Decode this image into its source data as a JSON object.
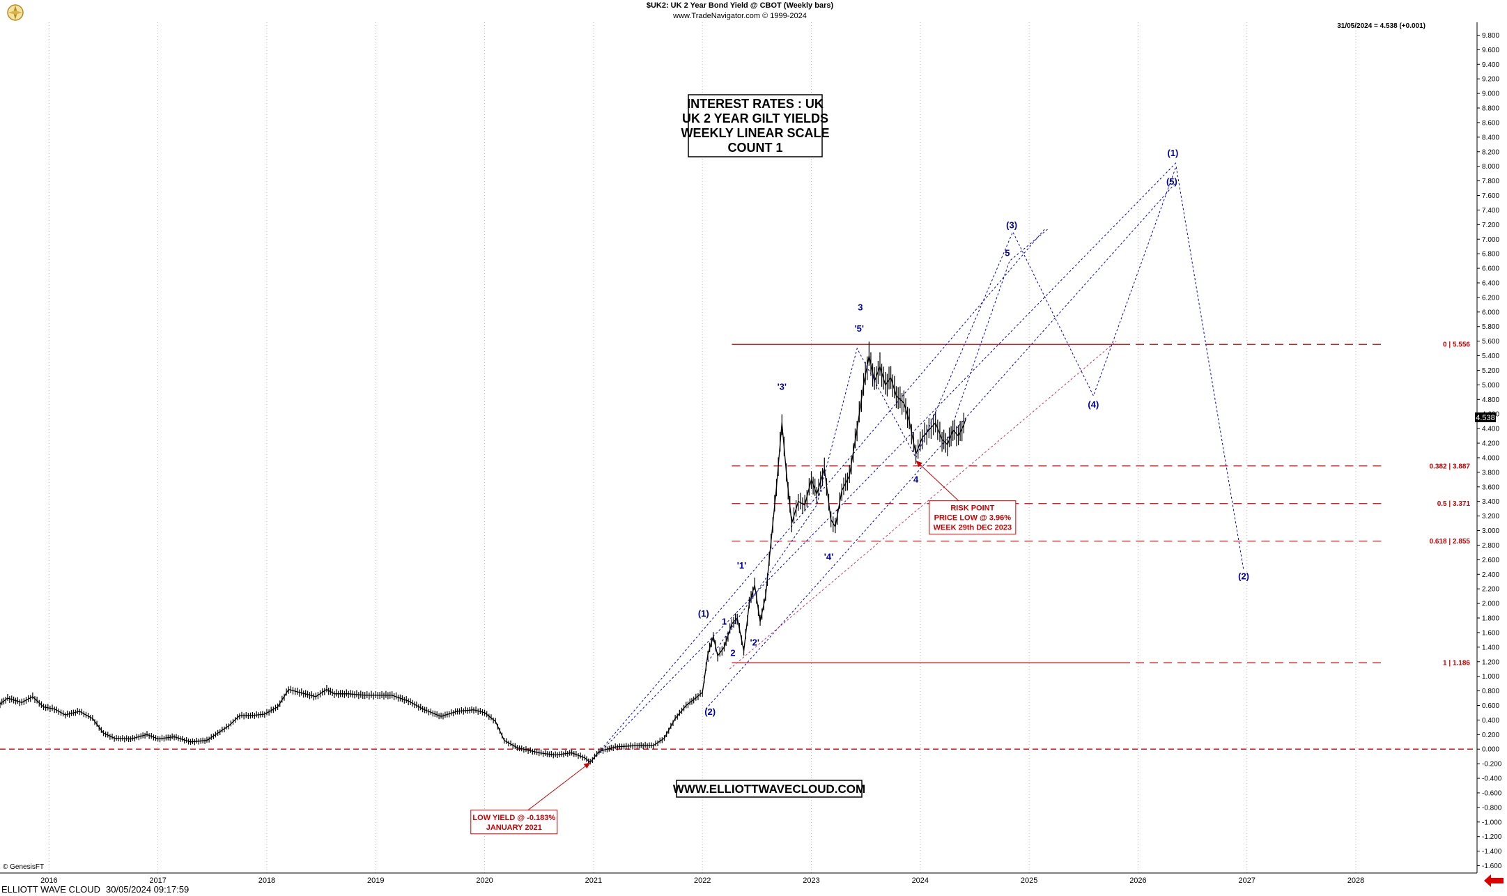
{
  "header": {
    "title": "$UK2:  UK 2 Year Bond Yield @ CBOT  (Weekly bars)",
    "subtitle": "www.TradeNavigator.com © 1999-2024",
    "last_value_label": "31/05/2024 = 4.538 (+0.001)",
    "current_price_badge": "4.538"
  },
  "title_box": [
    "INTEREST RATES : UK",
    "UK 2 YEAR GILT YIELDS",
    "WEEKLY LINEAR SCALE",
    "COUNT 1"
  ],
  "website_label": "WWW.ELLIOTTWAVECLOUD.COM",
  "copyright": "© GenesisFT",
  "footer": {
    "brand": "ELLIOTT WAVE CLOUD",
    "timestamp": "30/05/2024 09:17:59"
  },
  "colors": {
    "price_bar": "#000000",
    "fib_line": "#cc0000",
    "wave_label": "#0000aa",
    "projection_line": "#0000cc",
    "grid": "#b8b8b8",
    "annotation": "#cc0000"
  },
  "icons": [
    "compass-logo-icon",
    "left-arrow-icon"
  ],
  "chart_data": {
    "type": "line",
    "x_axis": {
      "min": 2015.55,
      "max": 2029.1,
      "tick_labels": [
        "2016",
        "2017",
        "2018",
        "2019",
        "2020",
        "2021",
        "2022",
        "2023",
        "2024",
        "2025",
        "2026",
        "2027",
        "2028"
      ],
      "tick_positions": [
        2016,
        2017,
        2018,
        2019,
        2020,
        2021,
        2022,
        2023,
        2024,
        2025,
        2026,
        2027,
        2028
      ]
    },
    "y_axis": {
      "min": -1.7,
      "max": 9.9,
      "step": 0.2,
      "position": "right"
    },
    "grid": true,
    "price_path": [
      [
        2015.55,
        0.62
      ],
      [
        2015.62,
        0.7
      ],
      [
        2015.75,
        0.64
      ],
      [
        2015.85,
        0.72
      ],
      [
        2015.95,
        0.58
      ],
      [
        2016.05,
        0.55
      ],
      [
        2016.15,
        0.47
      ],
      [
        2016.28,
        0.52
      ],
      [
        2016.4,
        0.42
      ],
      [
        2016.5,
        0.22
      ],
      [
        2016.6,
        0.15
      ],
      [
        2016.75,
        0.14
      ],
      [
        2016.9,
        0.2
      ],
      [
        2017.0,
        0.14
      ],
      [
        2017.15,
        0.17
      ],
      [
        2017.3,
        0.1
      ],
      [
        2017.45,
        0.12
      ],
      [
        2017.55,
        0.22
      ],
      [
        2017.65,
        0.32
      ],
      [
        2017.75,
        0.46
      ],
      [
        2017.85,
        0.46
      ],
      [
        2017.98,
        0.48
      ],
      [
        2018.1,
        0.58
      ],
      [
        2018.2,
        0.82
      ],
      [
        2018.3,
        0.78
      ],
      [
        2018.45,
        0.72
      ],
      [
        2018.55,
        0.82
      ],
      [
        2018.62,
        0.76
      ],
      [
        2018.75,
        0.76
      ],
      [
        2018.9,
        0.74
      ],
      [
        2019.0,
        0.74
      ],
      [
        2019.15,
        0.74
      ],
      [
        2019.3,
        0.66
      ],
      [
        2019.45,
        0.54
      ],
      [
        2019.6,
        0.45
      ],
      [
        2019.75,
        0.52
      ],
      [
        2019.9,
        0.54
      ],
      [
        2020.0,
        0.5
      ],
      [
        2020.1,
        0.38
      ],
      [
        2020.18,
        0.12
      ],
      [
        2020.3,
        0.02
      ],
      [
        2020.5,
        -0.05
      ],
      [
        2020.65,
        -0.08
      ],
      [
        2020.8,
        -0.05
      ],
      [
        2020.92,
        -0.12
      ],
      [
        2020.97,
        -0.18
      ],
      [
        2021.05,
        -0.03
      ],
      [
        2021.2,
        0.03
      ],
      [
        2021.4,
        0.05
      ],
      [
        2021.55,
        0.05
      ],
      [
        2021.65,
        0.15
      ],
      [
        2021.75,
        0.42
      ],
      [
        2021.85,
        0.6
      ],
      [
        2021.92,
        0.68
      ],
      [
        2022.0,
        0.78
      ],
      [
        2022.05,
        1.3
      ],
      [
        2022.1,
        1.55
      ],
      [
        2022.14,
        1.28
      ],
      [
        2022.2,
        1.4
      ],
      [
        2022.27,
        1.72
      ],
      [
        2022.32,
        1.8
      ],
      [
        2022.38,
        1.35
      ],
      [
        2022.43,
        2.0
      ],
      [
        2022.48,
        2.25
      ],
      [
        2022.53,
        1.75
      ],
      [
        2022.58,
        2.1
      ],
      [
        2022.63,
        2.85
      ],
      [
        2022.68,
        3.6
      ],
      [
        2022.73,
        4.48
      ],
      [
        2022.77,
        3.8
      ],
      [
        2022.82,
        3.1
      ],
      [
        2022.88,
        3.4
      ],
      [
        2022.94,
        3.35
      ],
      [
        2023.0,
        3.7
      ],
      [
        2023.05,
        3.5
      ],
      [
        2023.12,
        3.85
      ],
      [
        2023.18,
        3.15
      ],
      [
        2023.22,
        3.05
      ],
      [
        2023.28,
        3.55
      ],
      [
        2023.35,
        3.75
      ],
      [
        2023.42,
        4.4
      ],
      [
        2023.48,
        5.0
      ],
      [
        2023.53,
        5.4
      ],
      [
        2023.58,
        5.05
      ],
      [
        2023.63,
        5.25
      ],
      [
        2023.68,
        5.0
      ],
      [
        2023.73,
        5.1
      ],
      [
        2023.78,
        4.85
      ],
      [
        2023.85,
        4.75
      ],
      [
        2023.9,
        4.5
      ],
      [
        2023.96,
        4.05
      ],
      [
        2024.02,
        4.28
      ],
      [
        2024.08,
        4.38
      ],
      [
        2024.14,
        4.48
      ],
      [
        2024.2,
        4.25
      ],
      [
        2024.25,
        4.18
      ],
      [
        2024.3,
        4.38
      ],
      [
        2024.35,
        4.3
      ],
      [
        2024.4,
        4.45
      ],
      [
        2024.42,
        4.538
      ]
    ],
    "fib_levels": [
      {
        "label": "0 | 5.556",
        "value": 5.556
      },
      {
        "label": "0.382 | 3.887",
        "value": 3.887
      },
      {
        "label": "0.5 | 3.371",
        "value": 3.371
      },
      {
        "label": "0.618 | 2.855",
        "value": 2.855
      },
      {
        "label": "1 | 1.186",
        "value": 1.186
      }
    ],
    "zero_line": 0.0,
    "wave_labels": [
      {
        "text": "(1)",
        "x": 2022.01,
        "y": 1.82
      },
      {
        "text": "(2)",
        "x": 2022.07,
        "y": 0.47
      },
      {
        "text": "1",
        "x": 2022.2,
        "y": 1.71
      },
      {
        "text": "2",
        "x": 2022.28,
        "y": 1.28
      },
      {
        "text": "'1'",
        "x": 2022.36,
        "y": 2.48
      },
      {
        "text": "'2'",
        "x": 2022.48,
        "y": 1.42
      },
      {
        "text": "'3'",
        "x": 2022.73,
        "y": 4.93
      },
      {
        "text": "'4'",
        "x": 2023.16,
        "y": 2.6
      },
      {
        "text": "'5'",
        "x": 2023.44,
        "y": 5.73
      },
      {
        "text": "3",
        "x": 2023.45,
        "y": 6.02
      },
      {
        "text": "4",
        "x": 2023.96,
        "y": 3.66
      },
      {
        "text": "5",
        "x": 2024.8,
        "y": 6.77
      },
      {
        "text": "(3)",
        "x": 2024.84,
        "y": 7.15
      },
      {
        "text": "(4)",
        "x": 2025.59,
        "y": 4.69
      },
      {
        "text": "(1)",
        "x": 2026.32,
        "y": 8.14
      },
      {
        "text": "(5)",
        "x": 2026.31,
        "y": 7.75
      },
      {
        "text": "(2)",
        "x": 2026.97,
        "y": 2.33
      }
    ],
    "projection_paths": [
      [
        [
          2022.05,
          1.2
        ],
        [
          2023.05,
          3.35
        ],
        [
          2023.42,
          5.5
        ],
        [
          2023.96,
          4.0
        ],
        [
          2024.85,
          7.1
        ],
        [
          2025.59,
          4.85
        ],
        [
          2026.35,
          8.0
        ],
        [
          2026.97,
          2.45
        ]
      ],
      [
        [
          2024.32,
          4.55
        ],
        [
          2024.82,
          6.7
        ],
        [
          2025.18,
          7.15
        ]
      ]
    ],
    "channel_lines": [
      [
        [
          2020.97,
          -0.18
        ],
        [
          2026.35,
          8.05
        ]
      ],
      [
        [
          2020.97,
          -0.18
        ],
        [
          2025.15,
          7.15
        ]
      ],
      [
        [
          2022.03,
          0.55
        ],
        [
          2026.35,
          7.78
        ]
      ],
      [
        [
          2022.25,
          1.1
        ],
        [
          2025.8,
          5.6
        ]
      ]
    ],
    "annotations": [
      {
        "lines": [
          "RISK POINT",
          "PRICE LOW @ 3.96%",
          "WEEK 29th DEC 2023"
        ],
        "box_x": 2024.48,
        "box_y": 3.18,
        "arrow_to_x": 2023.96,
        "arrow_to_y": 3.96
      },
      {
        "lines": [
          "LOW YIELD @ -0.183%",
          "JANUARY 2021"
        ],
        "box_x": 2020.27,
        "box_y": -1.0,
        "arrow_to_x": 2020.97,
        "arrow_to_y": -0.183
      }
    ]
  }
}
